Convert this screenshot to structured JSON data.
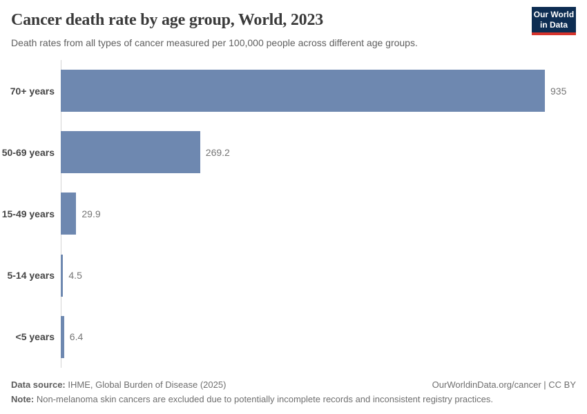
{
  "header": {
    "title": "Cancer death rate by age group, World, 2023",
    "subtitle": "Death rates from all types of cancer measured per 100,000 people across different age groups.",
    "logo": {
      "line1": "Our World",
      "line2": "in Data",
      "bg_color": "#0d2d52",
      "accent_color": "#d7342c"
    }
  },
  "chart_data": {
    "type": "bar",
    "orientation": "horizontal",
    "title": "Cancer death rate by age group, World, 2023",
    "xlabel": "",
    "ylabel": "",
    "grid": false,
    "legend": "none",
    "xlim": [
      0,
      935
    ],
    "categories": [
      "70+ years",
      "50-69 years",
      "15-49 years",
      "5-14 years",
      "<5 years"
    ],
    "values": [
      935,
      269.2,
      29.9,
      4.5,
      6.4
    ],
    "value_labels": [
      "935",
      "269.2",
      "29.9",
      "4.5",
      "6.4"
    ],
    "bar_color": "#6e88b0",
    "axis_color": "#d4d4d4"
  },
  "footer": {
    "datasource_label": "Data source:",
    "datasource_text": " IHME, Global Burden of Disease (2025)",
    "attribution": "OurWorldinData.org/cancer | CC BY",
    "note_label": "Note:",
    "note_text": " Non-melanoma skin cancers are excluded due to potentially incomplete records and inconsistent registry practices."
  }
}
